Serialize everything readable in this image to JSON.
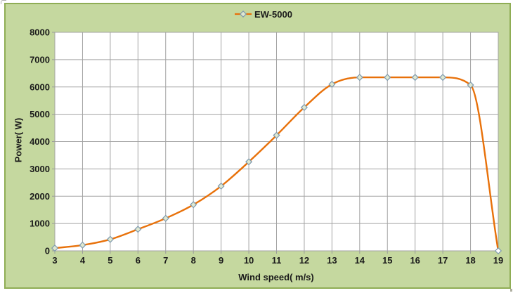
{
  "chart_data": {
    "type": "line",
    "title": "",
    "x": [
      3,
      4,
      5,
      6,
      7,
      8,
      9,
      10,
      11,
      12,
      13,
      14,
      15,
      16,
      17,
      18,
      19
    ],
    "series": [
      {
        "name": "EW-5000",
        "values": [
          100,
          210,
          420,
          790,
          1190,
          1690,
          2370,
          3260,
          4230,
          5250,
          6100,
          6350,
          6350,
          6350,
          6350,
          6070,
          0
        ]
      }
    ],
    "xlabel": "Wind speed( m/s)",
    "ylabel": "Power( W)",
    "xlim": [
      3,
      19
    ],
    "ylim": [
      0,
      8000
    ],
    "x_ticks": [
      3,
      4,
      5,
      6,
      7,
      8,
      9,
      10,
      11,
      12,
      13,
      14,
      15,
      16,
      17,
      18,
      19
    ],
    "y_ticks": [
      0,
      1000,
      2000,
      3000,
      4000,
      5000,
      6000,
      7000,
      8000
    ],
    "grid": "both",
    "smooth": true,
    "marker": "diamond",
    "legend_position": "top-center",
    "colors": {
      "chart_background": "#c5d89f",
      "chart_border": "#8fad55",
      "plot_background": "#ffffff",
      "gridline": "#a3a3a3",
      "axis_line": "#9b9b9b",
      "line": "#e8710a",
      "marker_stroke": "#7e99ae",
      "marker_fill": "#dfe8d0",
      "cutout_marker_fill": "#ffffff",
      "text": "#1a1a1a"
    }
  }
}
